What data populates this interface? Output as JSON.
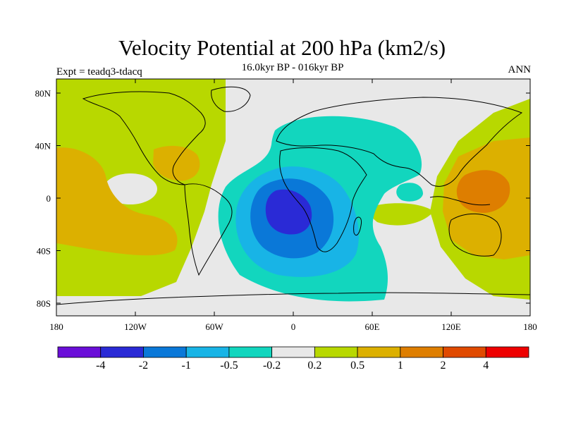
{
  "header": {
    "title": "Velocity Potential at 200 hPa (km2/s)",
    "subtitle": "16.0kyr BP - 016kyr BP",
    "left_label": "Expt = teadq3-tdacq",
    "right_label": "ANN"
  },
  "axes": {
    "lat_ticks": [
      "80N",
      "40N",
      "0",
      "40S",
      "80S"
    ],
    "lon_ticks": [
      "180",
      "120W",
      "60W",
      "0",
      "60E",
      "120E",
      "180"
    ]
  },
  "colorbar": {
    "colors": [
      "#6a0ed8",
      "#2a2ad6",
      "#0a78d8",
      "#18b4e6",
      "#12d6be",
      "#e8e8e8",
      "#b8d800",
      "#dcb000",
      "#de7e00",
      "#e04a00",
      "#ee0000"
    ],
    "labels": [
      "-4",
      "-2",
      "-1",
      "-0.5",
      "-0.2",
      "0.2",
      "0.5",
      "1",
      "2",
      "4"
    ]
  },
  "colors": {
    "background_field": "#e8e8e8",
    "coast": "#000000"
  }
}
